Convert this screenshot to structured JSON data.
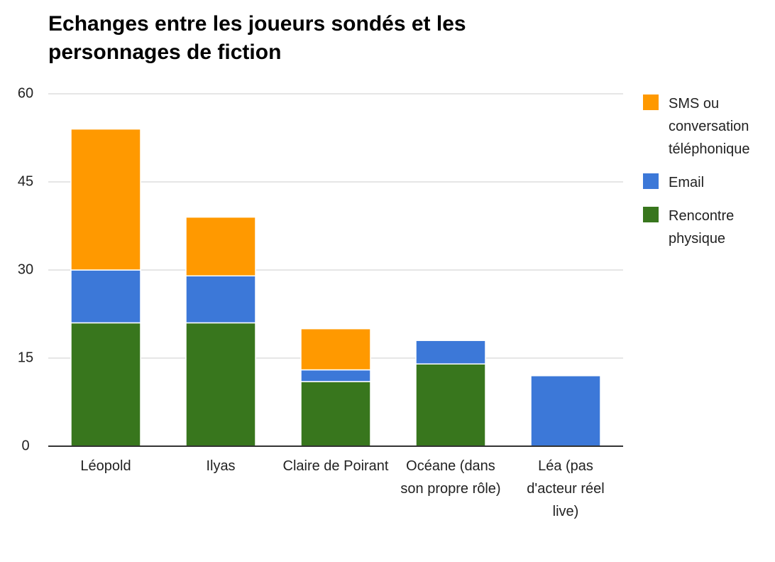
{
  "chart_data": {
    "type": "stacked_bar",
    "title": "Echanges entre les joueurs sondés et les personnages de fiction",
    "categories": [
      "Léopold",
      "Ilyas",
      "Claire de Poirant",
      "Océane (dans son propre rôle)",
      "Léa (pas d'acteur réel live)"
    ],
    "series": [
      {
        "name": "SMS ou conversation téléphonique",
        "color": "#ff9900",
        "values": [
          24,
          10,
          7,
          0,
          0
        ]
      },
      {
        "name": "Email",
        "color": "#3c78d8",
        "values": [
          9,
          8,
          2,
          4,
          12
        ]
      },
      {
        "name": "Rencontre physique",
        "color": "#38761d",
        "values": [
          21,
          21,
          11,
          14,
          0
        ]
      }
    ],
    "ylim": [
      0,
      60
    ],
    "yticks": [
      0,
      15,
      30,
      45,
      60
    ],
    "grid": true,
    "legend": "right"
  }
}
